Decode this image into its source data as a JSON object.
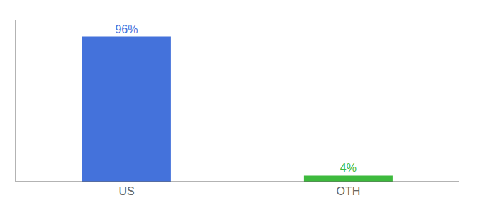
{
  "chart_data": {
    "type": "bar",
    "categories": [
      "US",
      "OTH"
    ],
    "values": [
      96,
      4
    ],
    "value_labels": [
      "96%",
      "4%"
    ],
    "colors": [
      "#4472db",
      "#3dba3d"
    ],
    "ylim": [
      0,
      107
    ],
    "data_labels": true,
    "tick_labels": "x"
  }
}
